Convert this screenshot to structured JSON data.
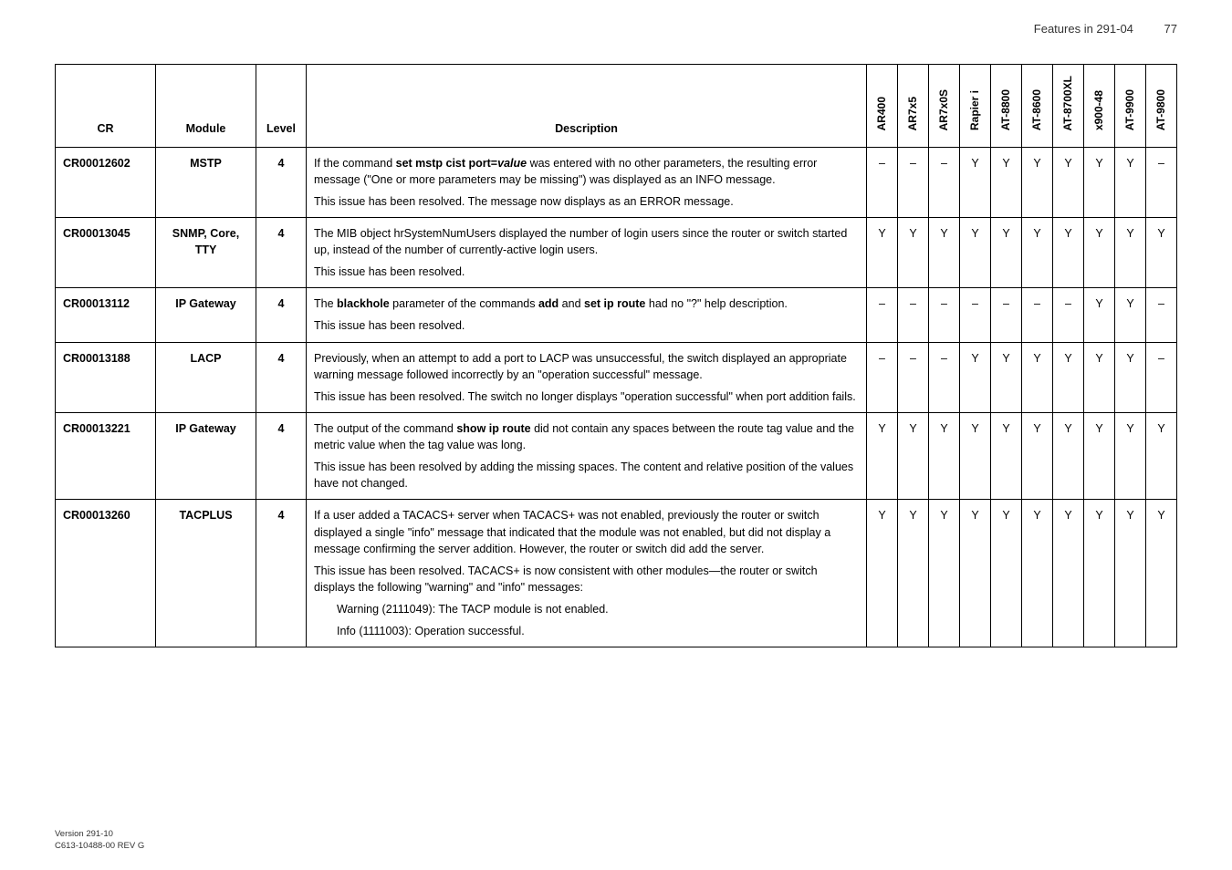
{
  "header": {
    "title": "Features in 291-04",
    "page": "77"
  },
  "columns": {
    "cr": "CR",
    "module": "Module",
    "level": "Level",
    "description": "Description",
    "flags": [
      "AR400",
      "AR7x5",
      "AR7x0S",
      "Rapier i",
      "AT-8800",
      "AT-8600",
      "AT-8700XL",
      "x900-48",
      "AT-9900",
      "AT-9800"
    ]
  },
  "rows": [
    {
      "cr": "CR00012602",
      "module": "MSTP",
      "level": "4",
      "desc": [
        {
          "t": "If the command <b>set mstp cist port=<i>value</i></b> was entered with no other parameters, the resulting error message (\"One or more parameters may be missing\") was displayed as an INFO message."
        },
        {
          "t": "This issue has been resolved. The message now displays as an ERROR message."
        }
      ],
      "flags": [
        "–",
        "–",
        "–",
        "Y",
        "Y",
        "Y",
        "Y",
        "Y",
        "Y",
        "–"
      ]
    },
    {
      "cr": "CR00013045",
      "module": "SNMP, Core, TTY",
      "level": "4",
      "desc": [
        {
          "t": "The MIB object hrSystemNumUsers displayed the number of login users since the router or switch started up, instead of the number of currently-active login users."
        },
        {
          "t": "This issue has been resolved."
        }
      ],
      "flags": [
        "Y",
        "Y",
        "Y",
        "Y",
        "Y",
        "Y",
        "Y",
        "Y",
        "Y",
        "Y"
      ]
    },
    {
      "cr": "CR00013112",
      "module": "IP Gateway",
      "level": "4",
      "desc": [
        {
          "t": "The <b>blackhole</b> parameter of the commands <b>add</b> and <b>set ip route</b> had no \"?\" help description."
        },
        {
          "t": "This issue has been resolved."
        }
      ],
      "flags": [
        "–",
        "–",
        "–",
        "–",
        "–",
        "–",
        "–",
        "Y",
        "Y",
        "–"
      ]
    },
    {
      "cr": "CR00013188",
      "module": "LACP",
      "level": "4",
      "desc": [
        {
          "t": "Previously, when an attempt to add a port to LACP was unsuccessful, the switch displayed an appropriate warning message followed incorrectly by an \"operation successful\" message."
        },
        {
          "t": "This issue has been resolved. The switch no longer displays \"operation successful\" when port addition fails."
        }
      ],
      "flags": [
        "–",
        "–",
        "–",
        "Y",
        "Y",
        "Y",
        "Y",
        "Y",
        "Y",
        "–"
      ]
    },
    {
      "cr": "CR00013221",
      "module": "IP Gateway",
      "level": "4",
      "desc": [
        {
          "t": "The output of the command <b>show ip route</b> did not contain any spaces between the route tag value and the metric value when the tag value was long."
        },
        {
          "t": "This issue has been resolved by adding the missing spaces. The content and relative position of the values have not changed."
        }
      ],
      "flags": [
        "Y",
        "Y",
        "Y",
        "Y",
        "Y",
        "Y",
        "Y",
        "Y",
        "Y",
        "Y"
      ]
    },
    {
      "cr": "CR00013260",
      "module": "TACPLUS",
      "level": "4",
      "desc": [
        {
          "t": "If a user added a TACACS+ server when TACACS+ was not enabled, previously the router or switch displayed a single \"info\" message that indicated that the module was not enabled, but did not display a message confirming the server addition. However, the router or switch did add the server."
        },
        {
          "t": "This issue has been resolved. TACACS+ is now consistent with other modules—the router or switch displays the following \"warning\" and \"info\" messages:"
        },
        {
          "t": "Warning (2111049): The TACP module is not enabled.",
          "indent": true
        },
        {
          "t": "Info (1111003): Operation successful.",
          "indent": true
        }
      ],
      "flags": [
        "Y",
        "Y",
        "Y",
        "Y",
        "Y",
        "Y",
        "Y",
        "Y",
        "Y",
        "Y"
      ]
    }
  ],
  "footer": {
    "line1": "Version 291-10",
    "line2": "C613-10488-00 REV G"
  }
}
